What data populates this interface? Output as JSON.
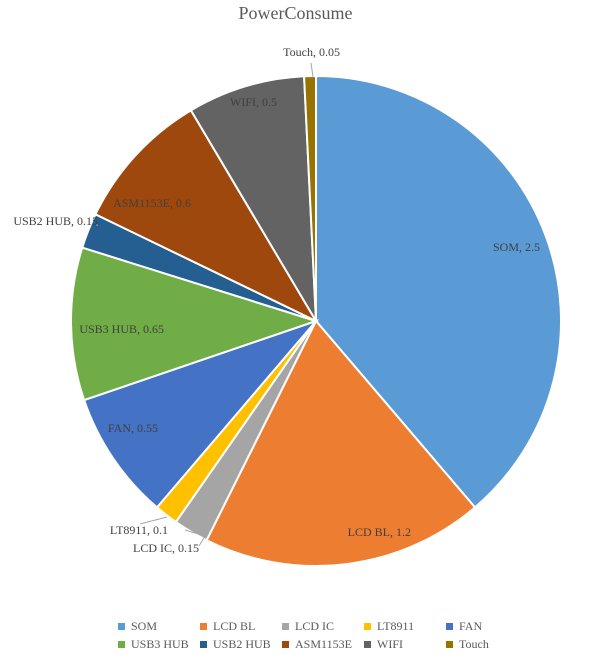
{
  "chart_data": {
    "type": "pie",
    "title": "PowerConsume",
    "slices": [
      {
        "label": "SOM",
        "value": 2.5,
        "color": "#5B9BD5",
        "data_label": "SOM, 2.5"
      },
      {
        "label": "LCD BL",
        "value": 1.2,
        "color": "#ED7D31",
        "data_label": "LCD BL, 1.2"
      },
      {
        "label": "LCD IC",
        "value": 0.15,
        "color": "#A5A5A5",
        "data_label": "LCD IC, 0.15"
      },
      {
        "label": "LT8911",
        "value": 0.1,
        "color": "#FFC000",
        "data_label": "LT8911, 0.1"
      },
      {
        "label": "FAN",
        "value": 0.55,
        "color": "#4472C4",
        "data_label": "FAN, 0.55"
      },
      {
        "label": "USB3 HUB",
        "value": 0.65,
        "color": "#70AD47",
        "data_label": "USB3 HUB, 0.65"
      },
      {
        "label": "USB2 HUB",
        "value": 0.15,
        "color": "#255E91",
        "data_label": "USB2 HUB, 0.15"
      },
      {
        "label": "ASM1153E",
        "value": 0.6,
        "color": "#9E480E",
        "data_label": "ASM1153E, 0.6"
      },
      {
        "label": "WIFI",
        "value": 0.5,
        "color": "#636363",
        "data_label": "WIFI, 0.5"
      },
      {
        "label": "Touch",
        "value": 0.05,
        "color": "#997300",
        "data_label": "Touch, 0.05"
      }
    ],
    "legend_position": "bottom"
  }
}
